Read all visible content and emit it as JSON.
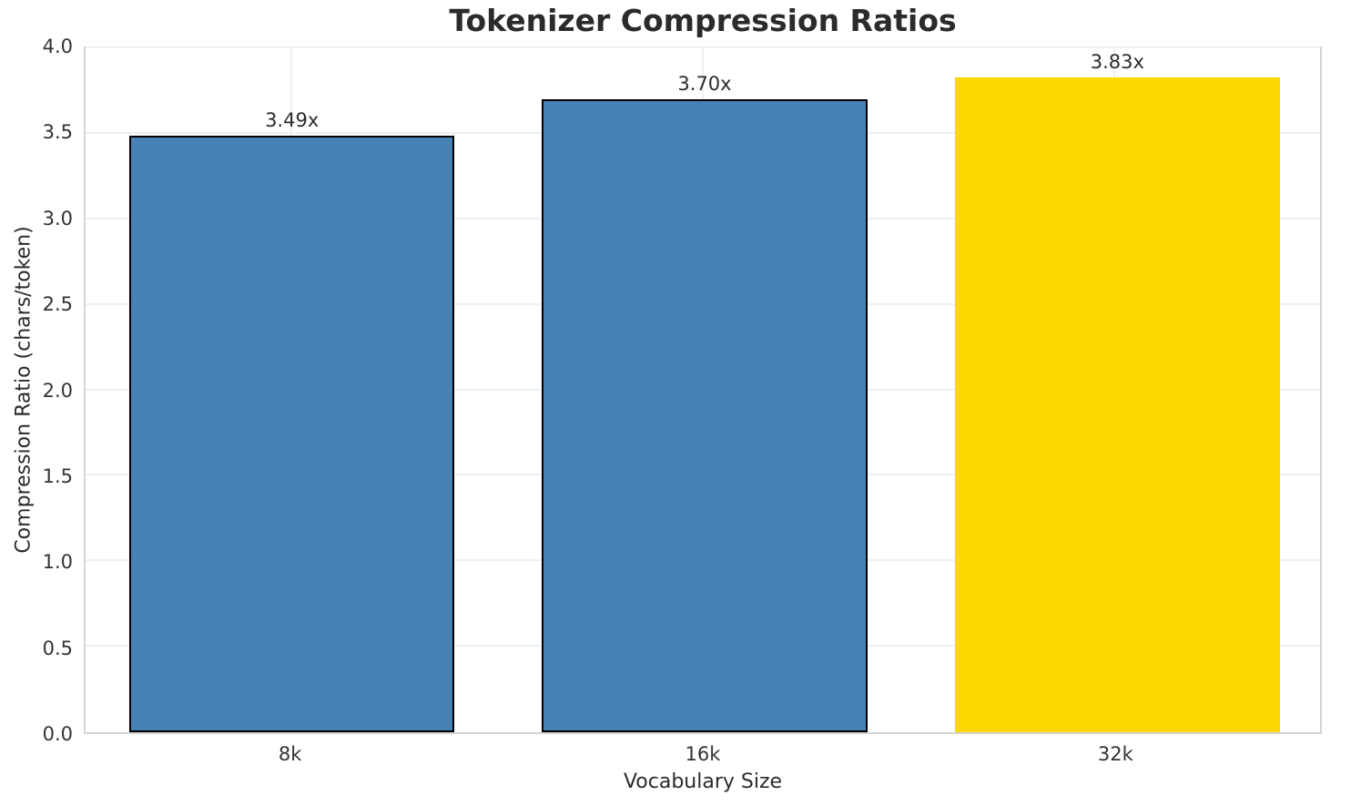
{
  "chart_data": {
    "type": "bar",
    "title": "Tokenizer Compression Ratios",
    "xlabel": "Vocabulary Size",
    "ylabel": "Compression Ratio (chars/token)",
    "categories": [
      "8k",
      "16k",
      "32k"
    ],
    "values": [
      3.49,
      3.7,
      3.83
    ],
    "value_labels": [
      "3.49x",
      "3.70x",
      "3.83x"
    ],
    "bar_colors": [
      "#4682B4",
      "#4682B4",
      "#FFD700"
    ],
    "bar_edge_colors": [
      "#000000",
      "#000000",
      "none"
    ],
    "ylim": [
      0,
      4.0
    ],
    "ytick_labels": [
      "0.0",
      "0.5",
      "1.0",
      "1.5",
      "2.0",
      "2.5",
      "3.0",
      "3.5",
      "4.0"
    ],
    "grid": "on",
    "legend": "none",
    "bar_width_fraction": 0.788
  },
  "colors": {
    "bar_blue": "#4682B4",
    "bar_highlight_gold": "#FFD700",
    "bar_edge": "#000000",
    "gridline": "#f0f0f0",
    "spine": "#d4d4d4",
    "text": "#2b2b2b"
  }
}
